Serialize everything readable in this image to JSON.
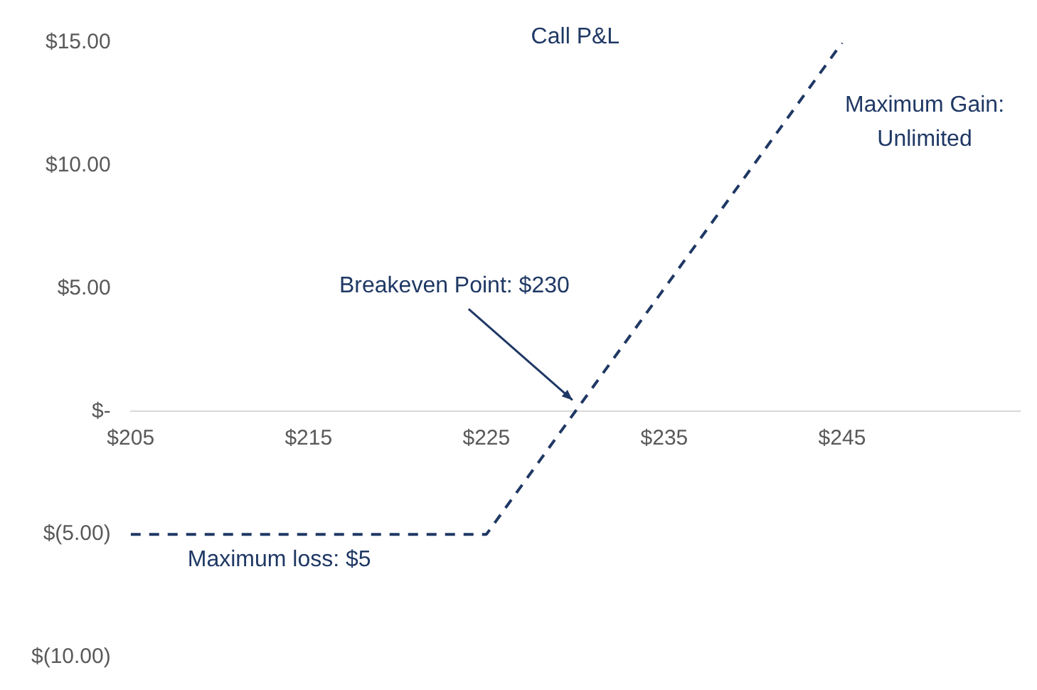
{
  "chart_data": {
    "type": "line",
    "title": "Call P&L",
    "x": [
      205,
      225,
      245
    ],
    "series": [
      {
        "color": "#1f3864",
        "values": [
          -5,
          -5,
          15
        ],
        "line_style": "dashed",
        "marker": "none"
      }
    ],
    "xlim": [
      205,
      255
    ],
    "xticks": [
      {
        "value": 205,
        "label": "$205"
      },
      {
        "value": 215,
        "label": "$215"
      },
      {
        "value": 225,
        "label": "$225"
      },
      {
        "value": 235,
        "label": "$235"
      },
      {
        "value": 245,
        "label": "$245"
      }
    ],
    "ylim": [
      -10,
      15
    ],
    "yticks": [
      {
        "value": -10,
        "label": "$(10.00)"
      },
      {
        "value": -5,
        "label": "$(5.00)"
      },
      {
        "value": 0,
        "label": "$-"
      },
      {
        "value": 5,
        "label": "$5.00"
      },
      {
        "value": 10,
        "label": "$10.00"
      },
      {
        "value": 15,
        "label": "$15.00"
      }
    ],
    "grid": false,
    "legend": false,
    "annotations": [
      "Breakeven Point: $230",
      "Maximum loss: $5",
      "Maximum Gain: Unlimited"
    ]
  }
}
